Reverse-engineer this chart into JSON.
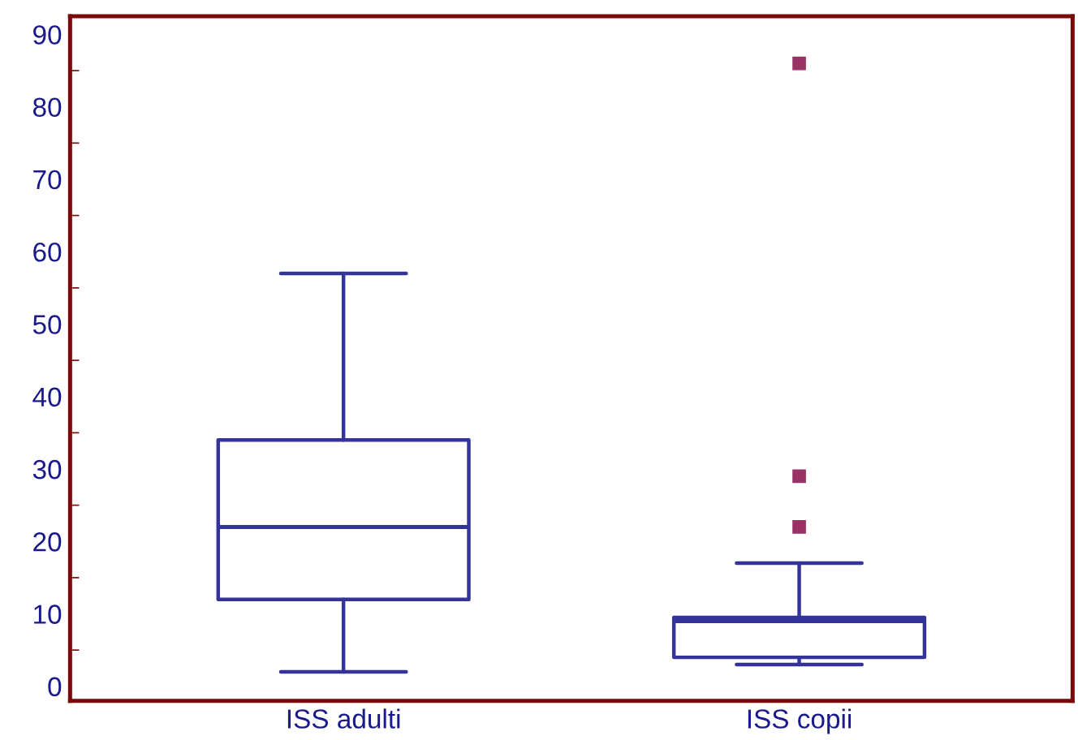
{
  "chart_data": {
    "type": "box",
    "categories": [
      "ISS adulti",
      "ISS copii"
    ],
    "boxes": [
      {
        "low": 2,
        "q1": 12,
        "median": 22,
        "q3": 34,
        "high": 57
      },
      {
        "low": 3,
        "q1": 4,
        "median": 9,
        "q3": 9.5,
        "high": 17,
        "outliers": [
          22,
          29,
          86
        ]
      }
    ],
    "color": "#333399",
    "ylim": [
      -2,
      92.5
    ],
    "yticks": [
      0,
      10,
      20,
      30,
      40,
      50,
      60,
      70,
      80,
      90
    ],
    "grid": false
  }
}
